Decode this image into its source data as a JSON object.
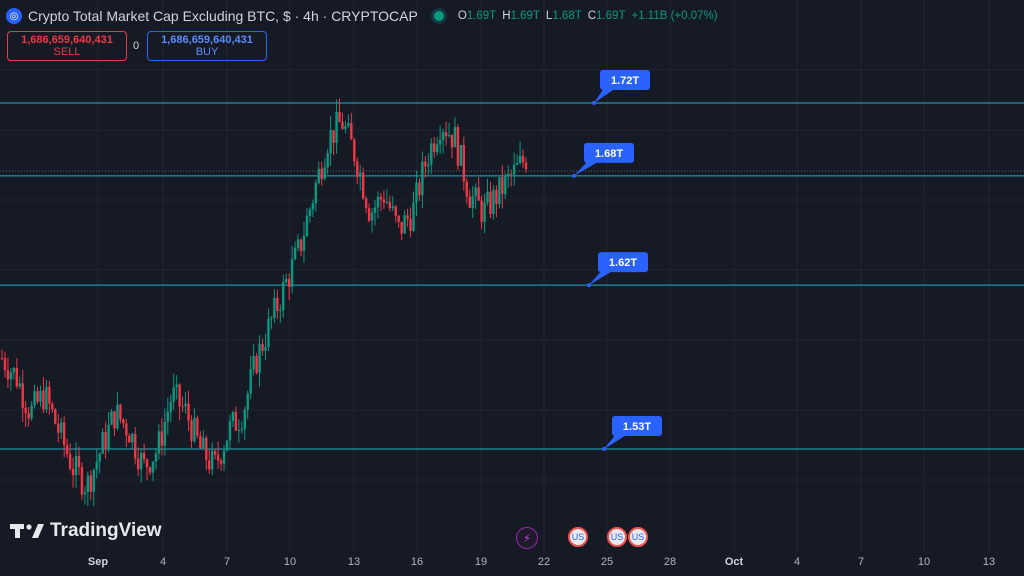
{
  "header": {
    "title": "Crypto Total Market Cap Excluding BTC, $ · 4h · CRYPTOCAP",
    "ohlc": [
      {
        "label": "O",
        "value": "1.69T"
      },
      {
        "label": "H",
        "value": "1.69T"
      },
      {
        "label": "L",
        "value": "1.68T"
      },
      {
        "label": "C",
        "value": "1.69T"
      },
      {
        "label": "",
        "value": "+1.11B (+0.07%)"
      }
    ]
  },
  "trade": {
    "sell_price": "1,686,659,640,431",
    "sell_label": "SELL",
    "spread": "0",
    "buy_price": "1,686,659,640,431",
    "buy_label": "BUY"
  },
  "logo_text": "TradingView",
  "colors": {
    "up": "#089981",
    "down": "#f23645",
    "level_line": "#21b0c4",
    "callout": "#2962ff"
  },
  "chart_data": {
    "type": "candlestick",
    "x_ticks": [
      "Sep",
      "4",
      "7",
      "10",
      "13",
      "16",
      "19",
      "22",
      "25",
      "28",
      "Oct",
      "4",
      "7",
      "10",
      "13"
    ],
    "levels": [
      {
        "label": "1.72T",
        "value": 1.72
      },
      {
        "label": "1.68T",
        "value": 1.68
      },
      {
        "label": "1.62T",
        "value": 1.62
      },
      {
        "label": "1.53T",
        "value": 1.53
      }
    ],
    "close_path": [
      1.58,
      1.57,
      1.55,
      1.56,
      1.54,
      1.52,
      1.51,
      1.53,
      1.55,
      1.54,
      1.52,
      1.53,
      1.56,
      1.55,
      1.53,
      1.52,
      1.54,
      1.55,
      1.58,
      1.6,
      1.62,
      1.64,
      1.67,
      1.7,
      1.71,
      1.69,
      1.66,
      1.67,
      1.65,
      1.66,
      1.69,
      1.71,
      1.7,
      1.67,
      1.66,
      1.67,
      1.68,
      1.69
    ],
    "y_range": [
      1.5,
      1.74
    ]
  },
  "bottom_icons": [
    {
      "name": "flash-icon",
      "glyph": "⚡"
    },
    {
      "name": "us-flag-icon",
      "glyph": "US"
    },
    {
      "name": "us-flag-icon",
      "glyph": "US"
    },
    {
      "name": "us-flag-icon",
      "glyph": "US"
    }
  ]
}
